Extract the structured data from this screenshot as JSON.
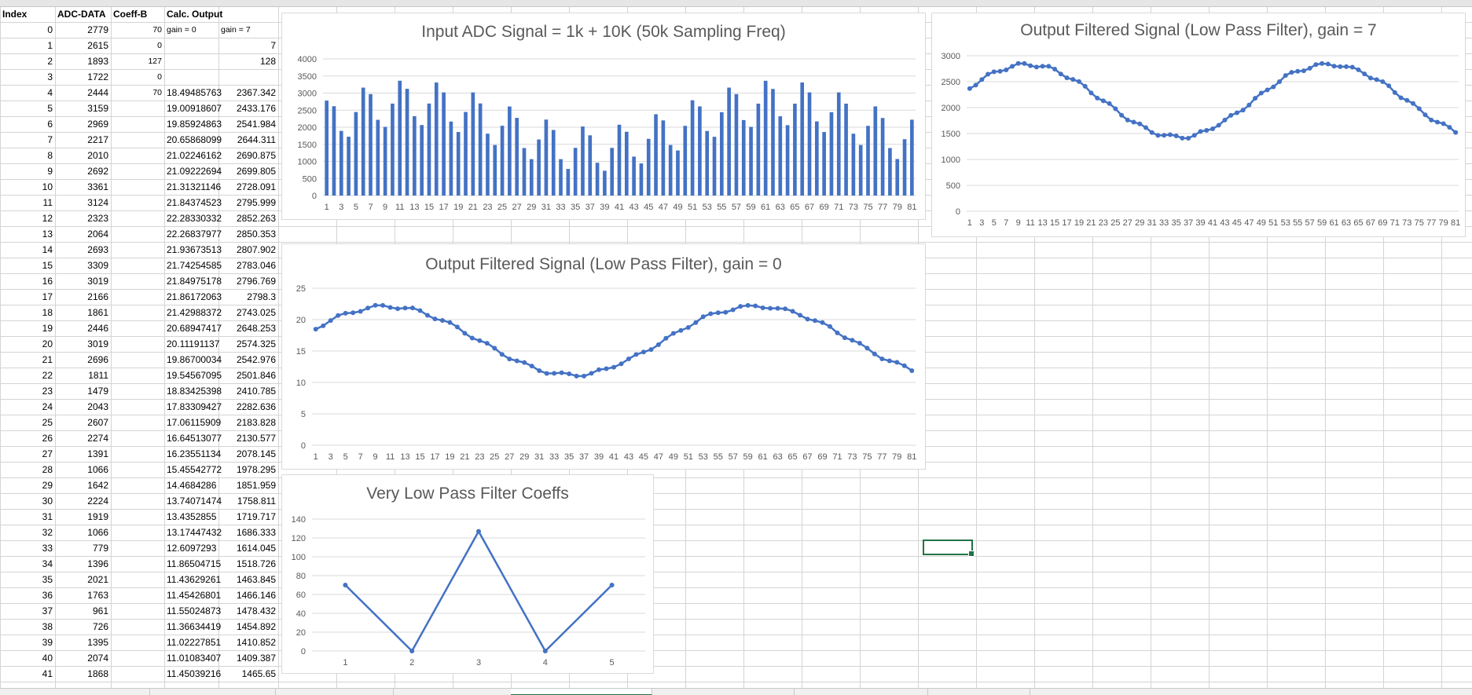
{
  "sheet": {
    "headers": [
      "Index",
      "ADC-DATA",
      "Coeff-B",
      "Calc. Output"
    ],
    "coeff_col_labels": {
      "gain0": "gain = 0",
      "gain7": "gain = 7"
    },
    "rows": [
      [
        "0",
        "2779",
        "70",
        "gain = 0",
        "gain = 7"
      ],
      [
        "1",
        "2615",
        "0",
        "",
        "7"
      ],
      [
        "2",
        "1893",
        "127",
        "",
        "128"
      ],
      [
        "3",
        "1722",
        "0",
        "",
        ""
      ],
      [
        "4",
        "2444",
        "70",
        "18.49485763",
        "2367.342"
      ],
      [
        "5",
        "3159",
        "",
        "19.00918607",
        "2433.176"
      ],
      [
        "6",
        "2969",
        "",
        "19.85924863",
        "2541.984"
      ],
      [
        "7",
        "2217",
        "",
        "20.65868099",
        "2644.311"
      ],
      [
        "8",
        "2010",
        "",
        "21.02246162",
        "2690.875"
      ],
      [
        "9",
        "2692",
        "",
        "21.09222694",
        "2699.805"
      ],
      [
        "10",
        "3361",
        "",
        "21.31321146",
        "2728.091"
      ],
      [
        "11",
        "3124",
        "",
        "21.84374523",
        "2795.999"
      ],
      [
        "12",
        "2323",
        "",
        "22.28330332",
        "2852.263"
      ],
      [
        "13",
        "2064",
        "",
        "22.26837977",
        "2850.353"
      ],
      [
        "14",
        "2693",
        "",
        "21.93673513",
        "2807.902"
      ],
      [
        "15",
        "3309",
        "",
        "21.74254585",
        "2783.046"
      ],
      [
        "16",
        "3019",
        "",
        "21.84975178",
        "2796.769"
      ],
      [
        "17",
        "2166",
        "",
        "21.86172063",
        "2798.3"
      ],
      [
        "18",
        "1861",
        "",
        "21.42988372",
        "2743.025"
      ],
      [
        "19",
        "2446",
        "",
        "20.68947417",
        "2648.253"
      ],
      [
        "20",
        "3019",
        "",
        "20.11191137",
        "2574.325"
      ],
      [
        "21",
        "2696",
        "",
        "19.86700034",
        "2542.976"
      ],
      [
        "22",
        "1811",
        "",
        "19.54567095",
        "2501.846"
      ],
      [
        "23",
        "1479",
        "",
        "18.83425398",
        "2410.785"
      ],
      [
        "24",
        "2043",
        "",
        "17.83309427",
        "2282.636"
      ],
      [
        "25",
        "2607",
        "",
        "17.06115909",
        "2183.828"
      ],
      [
        "26",
        "2274",
        "",
        "16.64513077",
        "2130.577"
      ],
      [
        "27",
        "1391",
        "",
        "16.23551134",
        "2078.145"
      ],
      [
        "28",
        "1066",
        "",
        "15.45542772",
        "1978.295"
      ],
      [
        "29",
        "1642",
        "",
        "14.4684286",
        "1851.959"
      ],
      [
        "30",
        "2224",
        "",
        "13.74071474",
        "1758.811"
      ],
      [
        "31",
        "1919",
        "",
        "13.4352855",
        "1719.717"
      ],
      [
        "32",
        "1066",
        "",
        "13.17447432",
        "1686.333"
      ],
      [
        "33",
        "779",
        "",
        "12.6097293",
        "1614.045"
      ],
      [
        "34",
        "1396",
        "",
        "11.86504715",
        "1518.726"
      ],
      [
        "35",
        "2021",
        "",
        "11.43629261",
        "1463.845"
      ],
      [
        "36",
        "1763",
        "",
        "11.45426801",
        "1466.146"
      ],
      [
        "37",
        "961",
        "",
        "11.55024873",
        "1478.432"
      ],
      [
        "38",
        "726",
        "",
        "11.36634419",
        "1454.892"
      ],
      [
        "39",
        "1395",
        "",
        "11.02227851",
        "1410.852"
      ],
      [
        "40",
        "2074",
        "",
        "11.01083407",
        "1409.387"
      ],
      [
        "41",
        "1868",
        "",
        "11.45039216",
        "1465.65"
      ]
    ]
  },
  "chart_data": [
    {
      "id": "input",
      "type": "bar",
      "title": "Input ADC Signal = 1k + 10K (50k Sampling Freq)",
      "xlabel": "",
      "ylabel": "",
      "ylim": [
        0,
        4000
      ],
      "yticks": [
        0,
        500,
        1000,
        1500,
        2000,
        2500,
        3000,
        3500,
        4000
      ],
      "x": [
        1,
        2,
        3,
        4,
        5,
        6,
        7,
        8,
        9,
        10,
        11,
        12,
        13,
        14,
        15,
        16,
        17,
        18,
        19,
        20,
        21,
        22,
        23,
        24,
        25,
        26,
        27,
        28,
        29,
        30,
        31,
        32,
        33,
        34,
        35,
        36,
        37,
        38,
        39,
        40,
        41,
        42,
        43,
        44,
        45,
        46,
        47,
        48,
        49,
        50,
        51,
        52,
        53,
        54,
        55,
        56,
        57,
        58,
        59,
        60,
        61,
        62,
        63,
        64,
        65,
        66,
        67,
        68,
        69,
        70,
        71,
        72,
        73,
        74,
        75,
        76,
        77,
        78,
        79,
        80,
        81
      ],
      "xtick_labels": [
        "1",
        "3",
        "5",
        "7",
        "9",
        "11",
        "13",
        "15",
        "17",
        "19",
        "21",
        "23",
        "25",
        "27",
        "29",
        "31",
        "33",
        "35",
        "37",
        "39",
        "41",
        "43",
        "45",
        "47",
        "49",
        "51",
        "53",
        "55",
        "57",
        "59",
        "61",
        "63",
        "65",
        "67",
        "69",
        "71",
        "73",
        "75",
        "77",
        "79",
        "81"
      ],
      "values": [
        2779,
        2615,
        1893,
        1722,
        2444,
        3159,
        2969,
        2217,
        2010,
        2692,
        3361,
        3124,
        2323,
        2064,
        2693,
        3309,
        3019,
        2166,
        1861,
        2446,
        3019,
        2696,
        1811,
        1479,
        2043,
        2607,
        2274,
        1391,
        1066,
        1642,
        2224,
        1919,
        1066,
        779,
        1396,
        2021,
        1763,
        961,
        726,
        1395,
        2074,
        1868,
        1140,
        940,
        1660,
        2380,
        2200,
        1480,
        1320,
        2040,
        2790,
        2610,
        1890,
        1720,
        2440,
        3160,
        2970,
        2210,
        2010,
        2690,
        3360,
        3120,
        2320,
        2060,
        2690,
        3310,
        3020,
        2170,
        1860,
        2440,
        3020,
        2690,
        1810,
        1480,
        2040,
        2610,
        2270,
        1390,
        1070,
        1650,
        2220
      ],
      "color": "#4472c4"
    },
    {
      "id": "gain7",
      "type": "line",
      "title": "Output Filtered Signal (Low Pass Filter), gain = 7",
      "xlabel": "",
      "ylabel": "",
      "ylim": [
        0,
        3000
      ],
      "yticks": [
        0,
        500,
        1000,
        1500,
        2000,
        2500,
        3000
      ],
      "x": [
        1,
        2,
        3,
        4,
        5,
        6,
        7,
        8,
        9,
        10,
        11,
        12,
        13,
        14,
        15,
        16,
        17,
        18,
        19,
        20,
        21,
        22,
        23,
        24,
        25,
        26,
        27,
        28,
        29,
        30,
        31,
        32,
        33,
        34,
        35,
        36,
        37,
        38,
        39,
        40,
        41,
        42,
        43,
        44,
        45,
        46,
        47,
        48,
        49,
        50,
        51,
        52,
        53,
        54,
        55,
        56,
        57,
        58,
        59,
        60,
        61,
        62,
        63,
        64,
        65,
        66,
        67,
        68,
        69,
        70,
        71,
        72,
        73,
        74,
        75,
        76,
        77,
        78,
        79,
        80,
        81
      ],
      "xtick_labels": [
        "1",
        "3",
        "5",
        "7",
        "9",
        "11",
        "13",
        "15",
        "17",
        "19",
        "21",
        "23",
        "25",
        "27",
        "29",
        "31",
        "33",
        "35",
        "37",
        "39",
        "41",
        "43",
        "45",
        "47",
        "49",
        "51",
        "53",
        "55",
        "57",
        "59",
        "61",
        "63",
        "65",
        "67",
        "69",
        "71",
        "73",
        "75",
        "77",
        "79",
        "81"
      ],
      "values": [
        2367,
        2433,
        2542,
        2644,
        2691,
        2700,
        2728,
        2796,
        2852,
        2850,
        2808,
        2783,
        2797,
        2798,
        2743,
        2648,
        2574,
        2543,
        2502,
        2411,
        2283,
        2184,
        2131,
        2078,
        1978,
        1852,
        1759,
        1720,
        1686,
        1614,
        1519,
        1464,
        1466,
        1478,
        1455,
        1411,
        1409,
        1466,
        1540,
        1560,
        1590,
        1660,
        1760,
        1850,
        1900,
        1950,
        2050,
        2180,
        2280,
        2340,
        2400,
        2500,
        2620,
        2680,
        2700,
        2710,
        2760,
        2830,
        2850,
        2840,
        2800,
        2790,
        2790,
        2780,
        2730,
        2650,
        2570,
        2540,
        2500,
        2420,
        2290,
        2190,
        2140,
        2080,
        1980,
        1860,
        1760,
        1720,
        1690,
        1620,
        1520
      ],
      "color": "#4472c4"
    },
    {
      "id": "gain0",
      "type": "line",
      "title": "Output Filtered Signal (Low Pass Filter), gain = 0",
      "xlabel": "",
      "ylabel": "",
      "ylim": [
        0,
        25
      ],
      "yticks": [
        0,
        5,
        10,
        15,
        20,
        25
      ],
      "x": [
        1,
        2,
        3,
        4,
        5,
        6,
        7,
        8,
        9,
        10,
        11,
        12,
        13,
        14,
        15,
        16,
        17,
        18,
        19,
        20,
        21,
        22,
        23,
        24,
        25,
        26,
        27,
        28,
        29,
        30,
        31,
        32,
        33,
        34,
        35,
        36,
        37,
        38,
        39,
        40,
        41,
        42,
        43,
        44,
        45,
        46,
        47,
        48,
        49,
        50,
        51,
        52,
        53,
        54,
        55,
        56,
        57,
        58,
        59,
        60,
        61,
        62,
        63,
        64,
        65,
        66,
        67,
        68,
        69,
        70,
        71,
        72,
        73,
        74,
        75,
        76,
        77,
        78,
        79,
        80,
        81
      ],
      "xtick_labels": [
        "1",
        "3",
        "5",
        "7",
        "9",
        "11",
        "13",
        "15",
        "17",
        "19",
        "21",
        "23",
        "25",
        "27",
        "29",
        "31",
        "33",
        "35",
        "37",
        "39",
        "41",
        "43",
        "45",
        "47",
        "49",
        "51",
        "53",
        "55",
        "57",
        "59",
        "61",
        "63",
        "65",
        "67",
        "69",
        "71",
        "73",
        "75",
        "77",
        "79",
        "81"
      ],
      "values": [
        18.49,
        19.01,
        19.86,
        20.66,
        21.02,
        21.09,
        21.31,
        21.84,
        22.28,
        22.27,
        21.94,
        21.74,
        21.85,
        21.86,
        21.43,
        20.69,
        20.11,
        19.87,
        19.55,
        18.83,
        17.83,
        17.06,
        16.65,
        16.24,
        15.46,
        14.47,
        13.74,
        13.44,
        13.17,
        12.61,
        11.87,
        11.44,
        11.45,
        11.55,
        11.37,
        11.02,
        11.01,
        11.45,
        12.03,
        12.19,
        12.42,
        12.97,
        13.75,
        14.45,
        14.84,
        15.23,
        16.02,
        17.03,
        17.81,
        18.28,
        18.75,
        19.53,
        20.47,
        20.94,
        21.09,
        21.17,
        21.56,
        22.11,
        22.27,
        22.19,
        21.88,
        21.8,
        21.8,
        21.72,
        21.33,
        20.7,
        20.08,
        19.84,
        19.53,
        18.91,
        17.89,
        17.11,
        16.72,
        16.25,
        15.47,
        14.53,
        13.75,
        13.44,
        13.2,
        12.66,
        11.88
      ],
      "color": "#4472c4"
    },
    {
      "id": "coeffs",
      "type": "line",
      "title": "Very Low Pass Filter Coeffs",
      "xlabel": "",
      "ylabel": "",
      "ylim": [
        0,
        140
      ],
      "yticks": [
        0,
        20,
        40,
        60,
        80,
        100,
        120,
        140
      ],
      "x": [
        1,
        2,
        3,
        4,
        5
      ],
      "xtick_labels": [
        "1",
        "2",
        "3",
        "4",
        "5"
      ],
      "values": [
        70,
        0,
        127,
        0,
        70
      ],
      "color": "#4472c4"
    }
  ]
}
